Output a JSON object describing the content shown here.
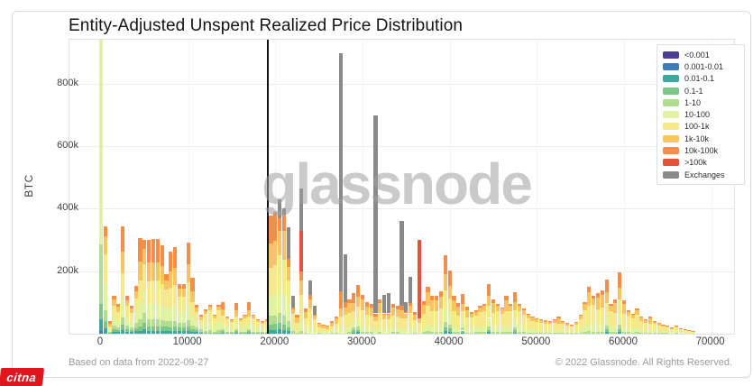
{
  "page": {
    "watermark": "glassnode",
    "footer_left": "Based on data from 2022-09-27",
    "footer_right": "© 2022 Glassnode. All Rights Reserved.",
    "corner_logo": "citna",
    "corner_logo_color": "#e0151e"
  },
  "chart_data": {
    "type": "bar",
    "variant": "stacked",
    "title": "Entity-Adjusted Unspent Realized Price Distribution",
    "xlabel": "",
    "ylabel": "BTC",
    "grid": true,
    "legend_position": "top-right",
    "x_units": "USD price bins",
    "y_units": "thousand BTC",
    "bin_width": 500,
    "xlim": [
      -3621,
      72622
    ],
    "ylim": [
      0,
      941
    ],
    "x_ticks": [
      0,
      10000,
      20000,
      30000,
      40000,
      50000,
      60000,
      70000
    ],
    "y_ticks": [
      {
        "v": 200,
        "label": "200k"
      },
      {
        "v": 400,
        "label": "400k"
      },
      {
        "v": 600,
        "label": "600k"
      },
      {
        "v": 800,
        "label": "800k"
      }
    ],
    "price_marker_line": 19140,
    "classes": [
      {
        "label": "<0.001",
        "color": "#4c3d97"
      },
      {
        "label": "0.001-0.01",
        "color": "#3d7eb8"
      },
      {
        "label": "0.01-0.1",
        "color": "#38a8a1"
      },
      {
        "label": "0.1-1",
        "color": "#7dc687"
      },
      {
        "label": "1-10",
        "color": "#b0dd90"
      },
      {
        "label": "10-100",
        "color": "#e1f2a3"
      },
      {
        "label": "100-1k",
        "color": "#f6e98c"
      },
      {
        "label": "1k-10k",
        "color": "#f7c363"
      },
      {
        "label": "10k-100k",
        "color": "#f68e49"
      },
      {
        "label": ">100k",
        "color": "#e4523a"
      },
      {
        "label": "Exchanges",
        "color": "#8a8a8a"
      }
    ],
    "profiles": {
      "f": [
        [
          1,
          0.01
        ],
        [
          2,
          0.04
        ],
        [
          3,
          0.05
        ],
        [
          4,
          0.2
        ],
        [
          5,
          0.7
        ]
      ],
      "a": [
        [
          2,
          0.05
        ],
        [
          3,
          0.07
        ],
        [
          4,
          0.1
        ],
        [
          5,
          0.24
        ],
        [
          6,
          0.28
        ],
        [
          7,
          0.16
        ],
        [
          8,
          0.1
        ]
      ],
      "b": [
        [
          2,
          0.03
        ],
        [
          3,
          0.05
        ],
        [
          4,
          0.07
        ],
        [
          5,
          0.17
        ],
        [
          6,
          0.24
        ],
        [
          7,
          0.2
        ],
        [
          8,
          0.24
        ]
      ],
      "c": [
        [
          3,
          0.04
        ],
        [
          4,
          0.08
        ],
        [
          5,
          0.3
        ],
        [
          6,
          0.4
        ],
        [
          7,
          0.13
        ],
        [
          8,
          0.05
        ]
      ],
      "d": [
        [
          4,
          0.05
        ],
        [
          5,
          0.15
        ],
        [
          6,
          0.4
        ],
        [
          7,
          0.28
        ],
        [
          8,
          0.12
        ]
      ],
      "e": [
        [
          4,
          0.06
        ],
        [
          5,
          0.2
        ],
        [
          6,
          0.5
        ],
        [
          7,
          0.18
        ],
        [
          8,
          0.06
        ]
      ]
    },
    "bars": [
      [
        0,
        950,
        "f"
      ],
      [
        500,
        345,
        "a"
      ],
      [
        1000,
        40,
        "b"
      ],
      [
        1500,
        122,
        "a"
      ],
      [
        2000,
        95,
        "a"
      ],
      [
        2500,
        344,
        "b"
      ],
      [
        3000,
        120,
        "a"
      ],
      [
        3500,
        90,
        "a"
      ],
      [
        4000,
        152,
        "a"
      ],
      [
        4500,
        305,
        "b"
      ],
      [
        5000,
        300,
        "a"
      ],
      [
        5500,
        300,
        "b"
      ],
      [
        6000,
        302,
        "b"
      ],
      [
        6500,
        302,
        "b"
      ],
      [
        7000,
        284,
        "b"
      ],
      [
        7500,
        190,
        "a"
      ],
      [
        8000,
        264,
        "b"
      ],
      [
        8500,
        278,
        "b"
      ],
      [
        9000,
        160,
        "a"
      ],
      [
        9500,
        160,
        "a"
      ],
      [
        10000,
        293,
        "b"
      ],
      [
        10500,
        178,
        "b"
      ],
      [
        11000,
        92,
        "a"
      ],
      [
        11500,
        60,
        "a"
      ],
      [
        12000,
        77,
        "c"
      ],
      [
        12500,
        92,
        "c"
      ],
      [
        13000,
        60,
        "c"
      ],
      [
        13500,
        92,
        "c"
      ],
      [
        14000,
        102,
        "b"
      ],
      [
        14500,
        55,
        "c"
      ],
      [
        15000,
        45,
        "c"
      ],
      [
        15500,
        98,
        "b"
      ],
      [
        16000,
        50,
        "c"
      ],
      [
        16500,
        60,
        "c"
      ],
      [
        17000,
        100,
        "b"
      ],
      [
        17500,
        60,
        "c"
      ],
      [
        18000,
        45,
        "c"
      ],
      [
        18500,
        40,
        "c"
      ],
      [
        19000,
        45,
        "c"
      ],
      [
        19500,
        378,
        "b"
      ],
      [
        20000,
        390,
        "b"
      ],
      [
        20500,
        [
          [
            2,
            15
          ],
          [
            3,
            20
          ],
          [
            4,
            30
          ],
          [
            5,
            75
          ],
          [
            6,
            110
          ],
          [
            7,
            80
          ],
          [
            8,
            40
          ],
          [
            10,
            60
          ]
        ]
      ],
      [
        21000,
        [
          [
            2,
            12
          ],
          [
            3,
            18
          ],
          [
            4,
            28
          ],
          [
            5,
            70
          ],
          [
            6,
            110
          ],
          [
            7,
            90
          ],
          [
            8,
            52
          ],
          [
            10,
            20
          ]
        ]
      ],
      [
        21500,
        [
          [
            2,
            8
          ],
          [
            3,
            12
          ],
          [
            4,
            20
          ],
          [
            5,
            55
          ],
          [
            6,
            75
          ],
          [
            7,
            45
          ],
          [
            8,
            25
          ],
          [
            10,
            100
          ]
        ]
      ],
      [
        22000,
        [
          [
            4,
            8
          ],
          [
            5,
            20
          ],
          [
            6,
            35
          ],
          [
            7,
            15
          ],
          [
            8,
            7
          ],
          [
            10,
            35
          ]
        ]
      ],
      [
        22500,
        60,
        "d"
      ],
      [
        23000,
        [
          [
            4,
            10
          ],
          [
            5,
            35
          ],
          [
            6,
            80
          ],
          [
            7,
            45
          ],
          [
            8,
            30
          ],
          [
            9,
            130
          ],
          [
            10,
            135
          ]
        ]
      ],
      [
        23500,
        80,
        "d"
      ],
      [
        24000,
        [
          [
            5,
            25
          ],
          [
            6,
            55
          ],
          [
            7,
            30
          ],
          [
            8,
            15
          ],
          [
            10,
            45
          ]
        ]
      ],
      [
        24500,
        [
          [
            5,
            15
          ],
          [
            6,
            30
          ],
          [
            7,
            12
          ],
          [
            8,
            5
          ],
          [
            10,
            28
          ]
        ]
      ],
      [
        25000,
        35,
        "d"
      ],
      [
        25500,
        28,
        "d"
      ],
      [
        26000,
        25,
        "d"
      ],
      [
        26500,
        40,
        "d"
      ],
      [
        27000,
        55,
        "d"
      ],
      [
        27500,
        [
          [
            5,
            20
          ],
          [
            6,
            35
          ],
          [
            7,
            25
          ],
          [
            8,
            55
          ],
          [
            10,
            762
          ]
        ]
      ],
      [
        28000,
        [
          [
            5,
            20
          ],
          [
            6,
            40
          ],
          [
            7,
            25
          ],
          [
            8,
            15
          ],
          [
            10,
            155
          ]
        ]
      ],
      [
        28500,
        110,
        "d"
      ],
      [
        29000,
        130,
        "b"
      ],
      [
        29500,
        155,
        "b"
      ],
      [
        30000,
        125,
        "d"
      ],
      [
        30500,
        100,
        "d"
      ],
      [
        31000,
        95,
        "d"
      ],
      [
        31500,
        [
          [
            5,
            15
          ],
          [
            6,
            25
          ],
          [
            7,
            15
          ],
          [
            8,
            10
          ],
          [
            10,
            635
          ]
        ]
      ],
      [
        32000,
        110,
        "d"
      ],
      [
        32500,
        [
          [
            5,
            15
          ],
          [
            6,
            30
          ],
          [
            7,
            15
          ],
          [
            8,
            5
          ],
          [
            10,
            60
          ]
        ]
      ],
      [
        33000,
        [
          [
            5,
            15
          ],
          [
            6,
            30
          ],
          [
            7,
            15
          ],
          [
            8,
            5
          ],
          [
            10,
            65
          ]
        ]
      ],
      [
        33500,
        95,
        "d"
      ],
      [
        34000,
        90,
        "d"
      ],
      [
        34500,
        [
          [
            5,
            15
          ],
          [
            6,
            35
          ],
          [
            7,
            25
          ],
          [
            8,
            15
          ],
          [
            10,
            270
          ]
        ]
      ],
      [
        35000,
        [
          [
            5,
            15
          ],
          [
            6,
            35
          ],
          [
            7,
            15
          ],
          [
            8,
            5
          ],
          [
            10,
            30
          ]
        ]
      ],
      [
        35500,
        [
          [
            5,
            20
          ],
          [
            6,
            45
          ],
          [
            7,
            25
          ],
          [
            8,
            8
          ],
          [
            10,
            85
          ]
        ]
      ],
      [
        36000,
        70,
        "d"
      ],
      [
        36500,
        [
          [
            5,
            10
          ],
          [
            6,
            25
          ],
          [
            7,
            15
          ],
          [
            9,
            250
          ]
        ]
      ],
      [
        37000,
        105,
        "d"
      ],
      [
        37500,
        150,
        "d"
      ],
      [
        38000,
        120,
        "d"
      ],
      [
        38500,
        120,
        "d"
      ],
      [
        39000,
        135,
        "d"
      ],
      [
        39500,
        250,
        "b"
      ],
      [
        40000,
        201,
        "b"
      ],
      [
        40500,
        121,
        "d"
      ],
      [
        41000,
        98,
        "d"
      ],
      [
        41500,
        127,
        "b"
      ],
      [
        42000,
        86,
        "d"
      ],
      [
        42500,
        68,
        "e"
      ],
      [
        43000,
        75,
        "e"
      ],
      [
        43500,
        90,
        "e"
      ],
      [
        44000,
        95,
        "e"
      ],
      [
        44500,
        158,
        "b"
      ],
      [
        45000,
        110,
        "d"
      ],
      [
        45500,
        95,
        "e"
      ],
      [
        46000,
        85,
        "e"
      ],
      [
        46500,
        121,
        "d"
      ],
      [
        47000,
        95,
        "e"
      ],
      [
        47500,
        133,
        "b"
      ],
      [
        48000,
        95,
        "e"
      ],
      [
        48500,
        80,
        "e"
      ],
      [
        49000,
        65,
        "e"
      ],
      [
        49500,
        55,
        "e"
      ],
      [
        50000,
        50,
        "e"
      ],
      [
        50500,
        45,
        "e"
      ],
      [
        51000,
        42,
        "e"
      ],
      [
        51500,
        40,
        "e"
      ],
      [
        52000,
        45,
        "e"
      ],
      [
        52500,
        55,
        "d"
      ],
      [
        53000,
        40,
        "e"
      ],
      [
        53500,
        35,
        "e"
      ],
      [
        54000,
        30,
        "e"
      ],
      [
        54500,
        38,
        "e"
      ],
      [
        55000,
        60,
        "e"
      ],
      [
        55500,
        100,
        "e"
      ],
      [
        56000,
        150,
        "d"
      ],
      [
        56500,
        120,
        "e"
      ],
      [
        57000,
        130,
        "d"
      ],
      [
        57500,
        140,
        "d"
      ],
      [
        58000,
        173,
        "b"
      ],
      [
        58500,
        95,
        "e"
      ],
      [
        59000,
        110,
        "d"
      ],
      [
        59500,
        195,
        "b"
      ],
      [
        60000,
        107,
        "d"
      ],
      [
        60500,
        75,
        "e"
      ],
      [
        61000,
        65,
        "e"
      ],
      [
        61500,
        80,
        "e"
      ],
      [
        62000,
        55,
        "e"
      ],
      [
        62500,
        45,
        "e"
      ],
      [
        63000,
        55,
        "d"
      ],
      [
        63500,
        40,
        "e"
      ],
      [
        64000,
        35,
        "e"
      ],
      [
        64500,
        30,
        "e"
      ],
      [
        65000,
        25,
        "e"
      ],
      [
        65500,
        20,
        "e"
      ],
      [
        66000,
        25,
        "e"
      ],
      [
        66500,
        18,
        "e"
      ],
      [
        67000,
        15,
        "e"
      ],
      [
        67500,
        12,
        "e"
      ],
      [
        68000,
        10,
        "e"
      ]
    ]
  }
}
